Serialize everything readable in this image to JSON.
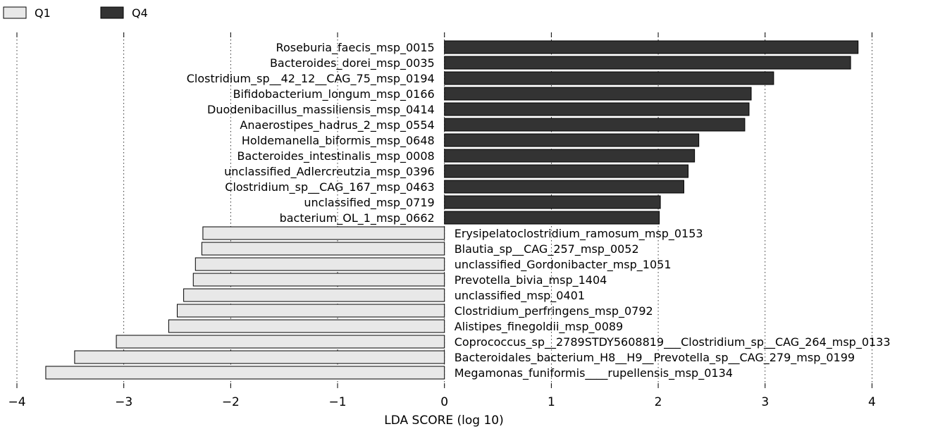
{
  "chart_data": {
    "type": "bar",
    "orientation": "horizontal",
    "title": "",
    "xlabel": "LDA SCORE (log 10)",
    "ylabel": "",
    "xlim": [
      -4,
      4.05
    ],
    "xticks": [
      -4,
      -3,
      -2,
      -1,
      0,
      1,
      2,
      3,
      4
    ],
    "xtick_labels": [
      "−4",
      "−3",
      "−2",
      "−1",
      "0",
      "1",
      "2",
      "3",
      "4"
    ],
    "grid": true,
    "legend_position": "top-left",
    "series": [
      {
        "name": "Q4",
        "color": "#333333",
        "items": [
          {
            "label": "Roseburia_faecis_msp_0015",
            "value": 3.87
          },
          {
            "label": "Bacteroides_dorei_msp_0035",
            "value": 3.8
          },
          {
            "label": "Clostridium_sp__42_12__CAG_75_msp_0194",
            "value": 3.08
          },
          {
            "label": "Bifidobacterium_longum_msp_0166",
            "value": 2.87
          },
          {
            "label": "Duodenibacillus_massiliensis_msp_0414",
            "value": 2.85
          },
          {
            "label": "Anaerostipes_hadrus_2_msp_0554",
            "value": 2.81
          },
          {
            "label": "Holdemanella_biformis_msp_0648",
            "value": 2.38
          },
          {
            "label": "Bacteroides_intestinalis_msp_0008",
            "value": 2.34
          },
          {
            "label": "unclassified_Adlercreutzia_msp_0396",
            "value": 2.28
          },
          {
            "label": "Clostridium_sp__CAG_167_msp_0463",
            "value": 2.24
          },
          {
            "label": "unclassified_msp_0719",
            "value": 2.02
          },
          {
            "label": "bacterium_OL_1_msp_0662",
            "value": 2.01
          }
        ]
      },
      {
        "name": "Q1",
        "color": "#e8e8e8",
        "items": [
          {
            "label": "Erysipelatoclostridium_ramosum_msp_0153",
            "value": -2.26
          },
          {
            "label": "Blautia_sp__CAG_257_msp_0052",
            "value": -2.27
          },
          {
            "label": "unclassified_Gordonibacter_msp_1051",
            "value": -2.33
          },
          {
            "label": "Prevotella_bivia_msp_1404",
            "value": -2.35
          },
          {
            "label": "unclassified_msp_0401",
            "value": -2.44
          },
          {
            "label": "Clostridium_perfringens_msp_0792",
            "value": -2.5
          },
          {
            "label": "Alistipes_finegoldii_msp_0089",
            "value": -2.58
          },
          {
            "label": "Coprococcus_sp__2789STDY5608819___Clostridium_sp__CAG_264_msp_0133",
            "value": -3.07
          },
          {
            "label": "Bacteroidales_bacterium_H8__H9__Prevotella_sp__CAG_279_msp_0199",
            "value": -3.46
          },
          {
            "label": "Megamonas_funiformis____rupellensis_msp_0134",
            "value": -3.73
          }
        ]
      }
    ]
  }
}
